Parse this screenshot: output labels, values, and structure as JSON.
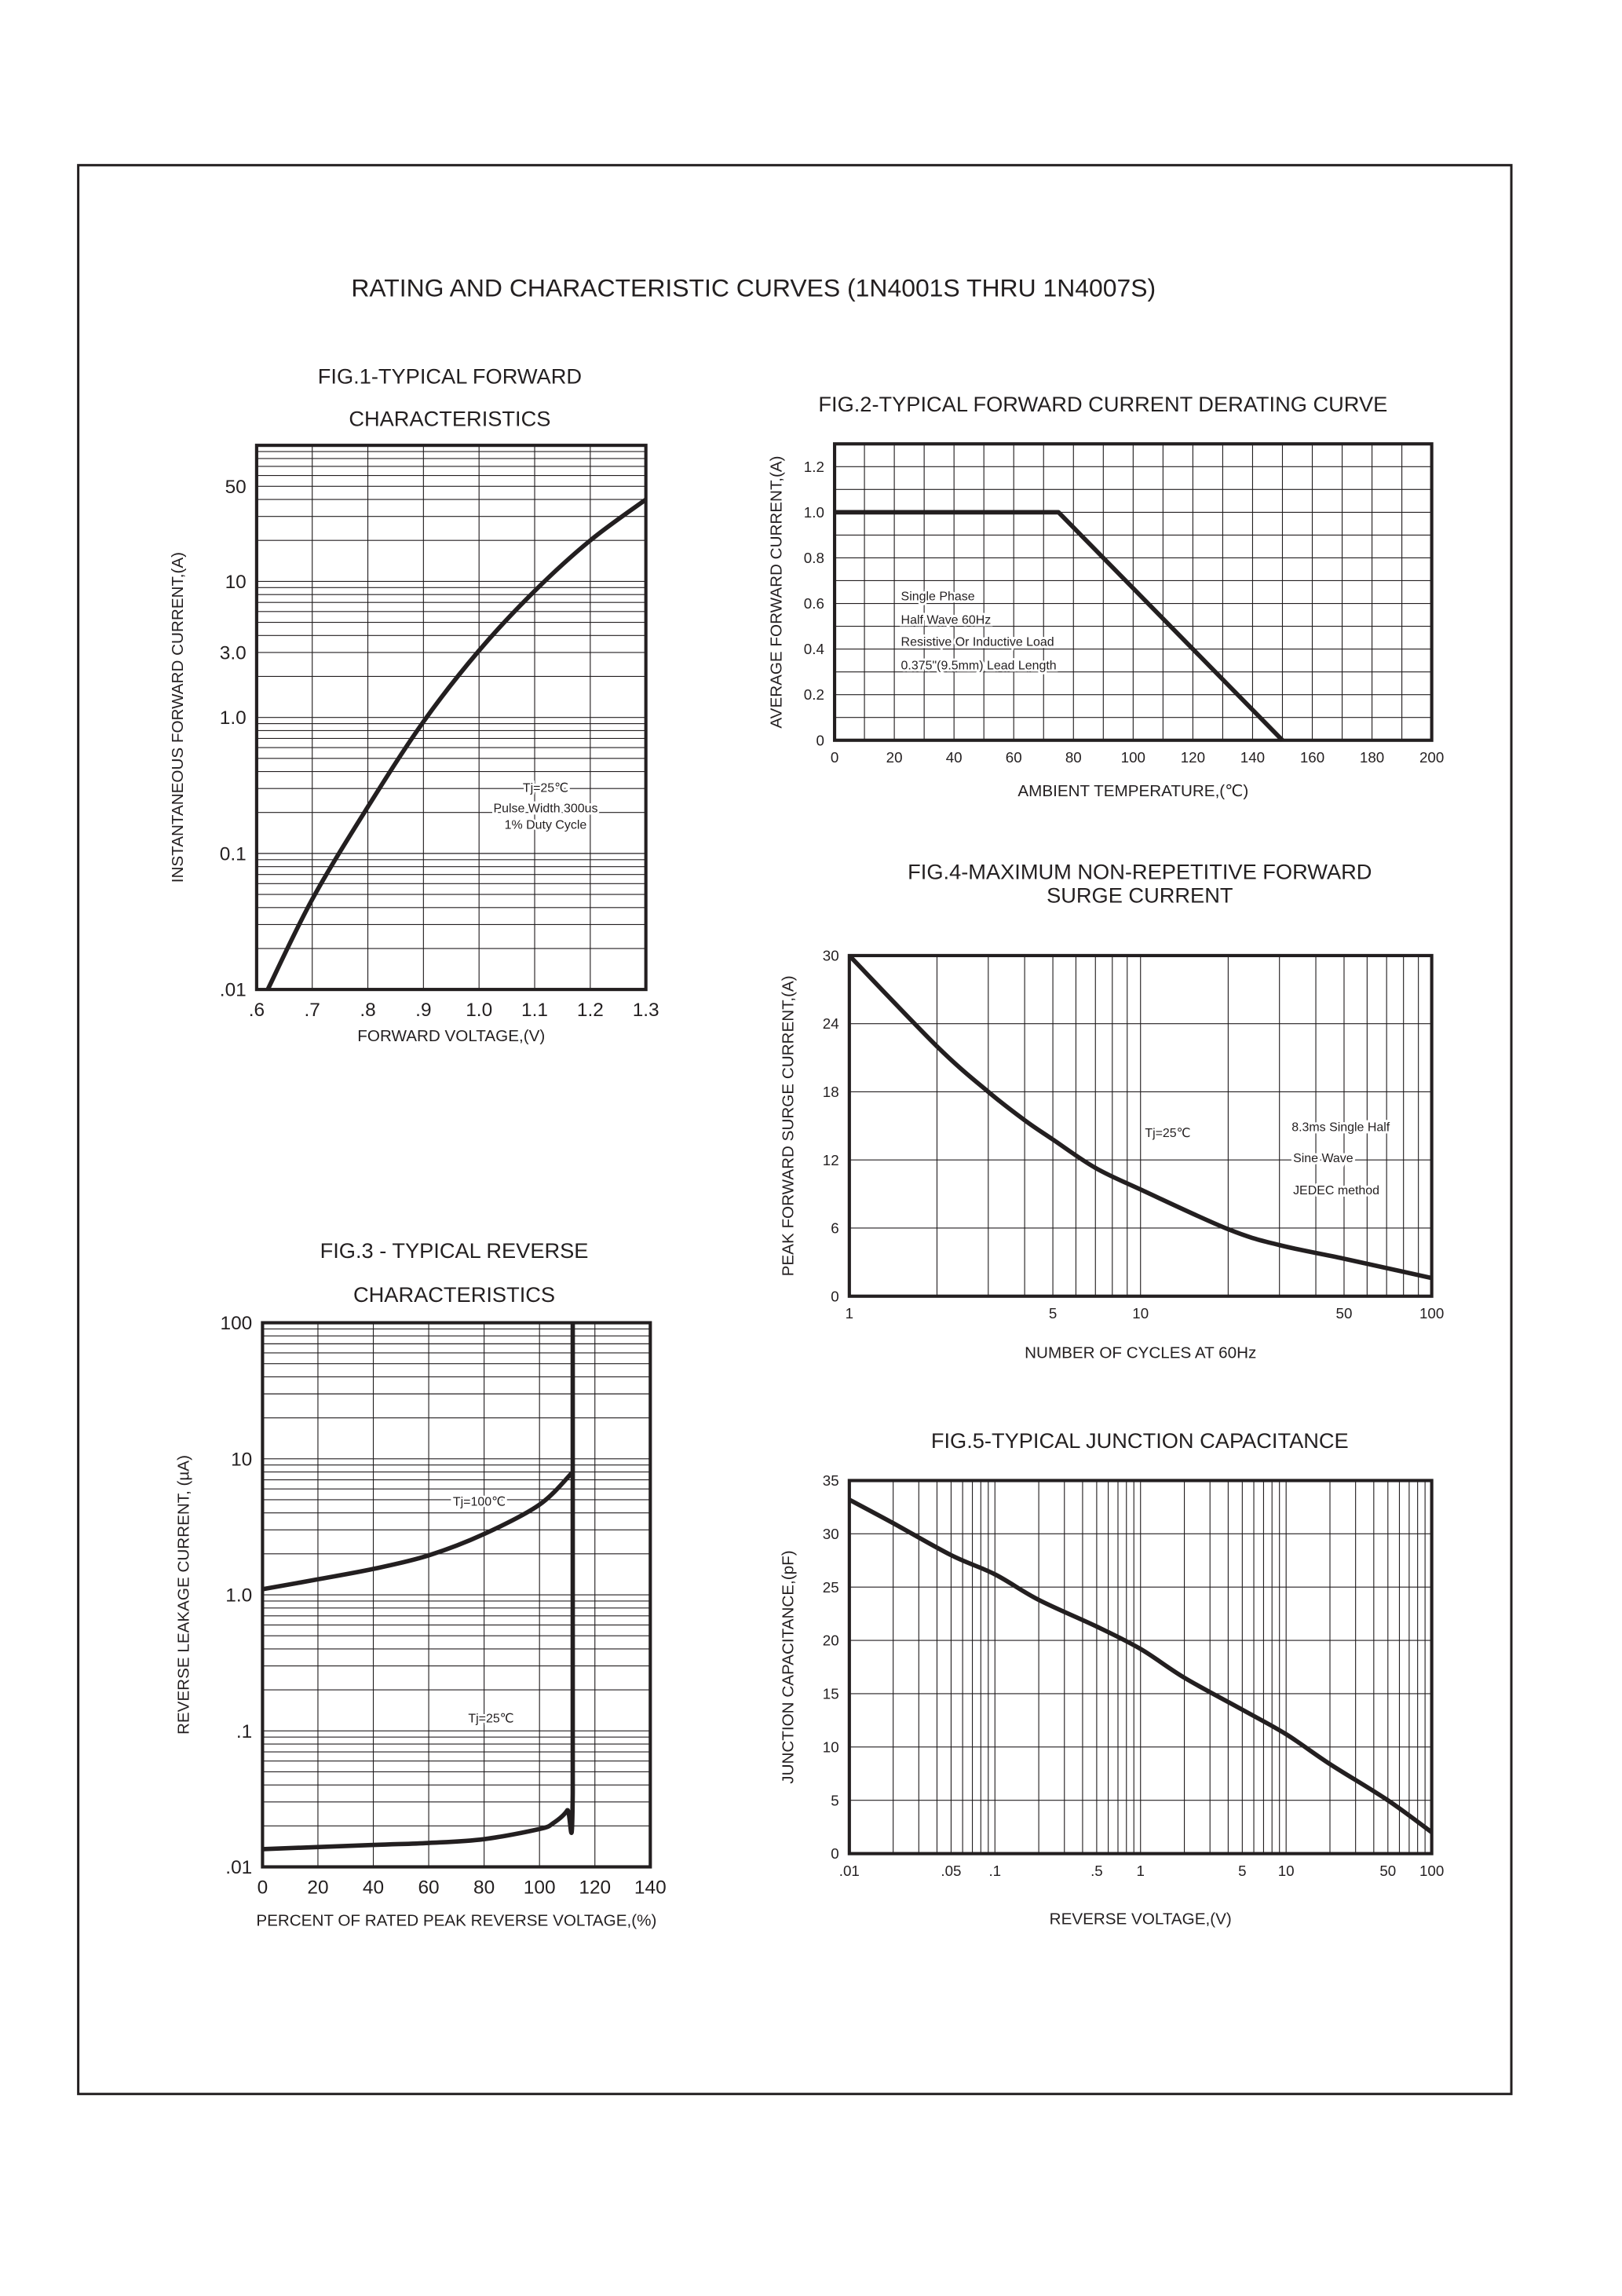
{
  "page_title": "RATING AND CHARACTERISTIC CURVES (1N4001S THRU 1N4007S)",
  "colors": {
    "ink": "#231f20",
    "grid": "#231f20",
    "background": "#ffffff"
  },
  "chart_data": [
    {
      "id": "fig1",
      "type": "line",
      "title": [
        "FIG.1-TYPICAL FORWARD",
        "CHARACTERISTICS"
      ],
      "xlabel": "FORWARD VOLTAGE,(V)",
      "ylabel": "INSTANTANEOUS FORWARD CURRENT,(A)",
      "xscale": "linear",
      "yscale": "log",
      "xlim": [
        0.6,
        1.3
      ],
      "ylim": [
        0.01,
        100
      ],
      "xticks": [
        0.6,
        0.7,
        0.8,
        0.9,
        1.0,
        1.1,
        1.2,
        1.3
      ],
      "xtick_labels": [
        ".6",
        ".7",
        ".8",
        ".9",
        "1.0",
        "1.1",
        "1.2",
        "1.3"
      ],
      "yticks": [
        0.01,
        0.1,
        1,
        3,
        10,
        50
      ],
      "ytick_labels": [
        ".01",
        "0.1",
        "1.0",
        "3.0",
        "10",
        "50"
      ],
      "grid": true,
      "annotations": [
        "Tj=25℃",
        "Pulse Width 300us",
        "1% Duty Cycle"
      ],
      "series": [
        {
          "x": [
            0.62,
            0.7,
            0.8,
            0.9,
            1.0,
            1.1,
            1.2,
            1.3
          ],
          "y": [
            0.01,
            0.046,
            0.22,
            0.93,
            3.1,
            8.5,
            20,
            40
          ]
        }
      ]
    },
    {
      "id": "fig2",
      "type": "line",
      "title": [
        "FIG.2-TYPICAL FORWARD CURRENT DERATING CURVE"
      ],
      "xlabel": "AMBIENT TEMPERATURE,(℃)",
      "ylabel": "AVERAGE FORWARD CURRENT,(A)",
      "xscale": "linear",
      "yscale": "linear",
      "xlim": [
        0,
        200
      ],
      "ylim": [
        0,
        1.3
      ],
      "xticks": [
        0,
        20,
        40,
        60,
        80,
        100,
        120,
        140,
        160,
        180,
        200
      ],
      "xtick_labels": [
        "0",
        "20",
        "40",
        "60",
        "80",
        "100",
        "120",
        "140",
        "160",
        "180",
        "200"
      ],
      "yticks": [
        0,
        0.2,
        0.4,
        0.6,
        0.8,
        1.0,
        1.2
      ],
      "ytick_labels": [
        "0",
        "0.2",
        "0.4",
        "0.6",
        "0.8",
        "1.0",
        "1.2"
      ],
      "grid": true,
      "annotations": [
        "Single Phase",
        "Half Wave 60Hz",
        "Resistive Or Inductive Load",
        "0.375\"(9.5mm) Lead Length"
      ],
      "series": [
        {
          "x": [
            0,
            75,
            150
          ],
          "y": [
            1.0,
            1.0,
            0
          ]
        }
      ]
    },
    {
      "id": "fig3",
      "type": "line",
      "title": [
        "FIG.3 - TYPICAL REVERSE",
        "CHARACTERISTICS"
      ],
      "xlabel": "PERCENT OF RATED PEAK REVERSE VOLTAGE,(%)",
      "ylabel": "REVERSE LEAKAGE CURRENT, (µA)",
      "xscale": "linear",
      "yscale": "log",
      "xlim": [
        0,
        140
      ],
      "ylim": [
        0.01,
        100
      ],
      "xticks": [
        0,
        20,
        40,
        60,
        80,
        100,
        120,
        140
      ],
      "xtick_labels": [
        "0",
        "20",
        "40",
        "60",
        "80",
        "100",
        "120",
        "140"
      ],
      "yticks": [
        0.01,
        0.1,
        1,
        10,
        100
      ],
      "ytick_labels": [
        ".01",
        ".1",
        "1.0",
        "10",
        "100"
      ],
      "grid": true,
      "annotations": [
        "Tj=100℃",
        "Tj=25℃"
      ],
      "series": [
        {
          "name": "Tj=100℃",
          "x": [
            0,
            20,
            40,
            60,
            80,
            100,
            112
          ],
          "y": [
            1.1,
            1.3,
            1.55,
            1.95,
            2.8,
            4.6,
            8
          ]
        },
        {
          "name": "Tj=25℃",
          "x": [
            0,
            40,
            60,
            80,
            100,
            105,
            110,
            112,
            112
          ],
          "y": [
            0.0135,
            0.0145,
            0.015,
            0.016,
            0.019,
            0.021,
            0.026,
            0.035,
            100
          ]
        }
      ]
    },
    {
      "id": "fig4",
      "type": "line",
      "title": [
        "FIG.4-MAXIMUM NON-REPETITIVE FORWARD",
        "SURGE CURRENT"
      ],
      "xlabel": "NUMBER OF CYCLES AT 60Hz",
      "ylabel": "PEAK FORWARD SURGE CURRENT,(A)",
      "xscale": "log",
      "yscale": "linear",
      "xlim": [
        1,
        100
      ],
      "ylim": [
        0,
        30
      ],
      "xticks": [
        1,
        5,
        10,
        50,
        100
      ],
      "xtick_labels": [
        "1",
        "5",
        "10",
        "50",
        "100"
      ],
      "yticks": [
        0,
        6,
        12,
        18,
        24,
        30
      ],
      "ytick_labels": [
        "0",
        "6",
        "12",
        "18",
        "24",
        "30"
      ],
      "grid": true,
      "annotations": [
        "Tj=25℃",
        "8.3ms Single Half",
        "Sine Wave",
        "JEDEC method"
      ],
      "series": [
        {
          "x": [
            1,
            2,
            3,
            4,
            5,
            7,
            10,
            20,
            30,
            50,
            100
          ],
          "y": [
            30,
            22,
            18,
            15.5,
            13.8,
            11.3,
            9.4,
            5.9,
            4.5,
            3.3,
            1.6
          ]
        }
      ]
    },
    {
      "id": "fig5",
      "type": "line",
      "title": [
        "FIG.5-TYPICAL JUNCTION CAPACITANCE"
      ],
      "xlabel": "REVERSE VOLTAGE,(V)",
      "ylabel": "JUNCTION CAPACITANCE,(pF)",
      "xscale": "log",
      "yscale": "linear",
      "xlim": [
        0.01,
        100
      ],
      "ylim": [
        0,
        35
      ],
      "xticks": [
        0.01,
        0.05,
        0.1,
        0.5,
        1,
        5,
        10,
        50,
        100
      ],
      "xtick_labels": [
        ".01",
        ".05",
        ".1",
        ".5",
        "1",
        "5",
        "10",
        "50",
        "100"
      ],
      "yticks": [
        0,
        5,
        10,
        15,
        20,
        25,
        30,
        35
      ],
      "ytick_labels": [
        "0",
        "5",
        "10",
        "15",
        "20",
        "25",
        "30",
        "35"
      ],
      "grid": true,
      "annotations": [],
      "series": [
        {
          "x": [
            0.01,
            0.02,
            0.05,
            0.1,
            0.2,
            0.5,
            1,
            2,
            5,
            10,
            20,
            50,
            100
          ],
          "y": [
            33.2,
            31,
            28,
            26.2,
            23.8,
            21.3,
            19.2,
            16.5,
            13.5,
            11.2,
            8.4,
            5,
            2
          ]
        }
      ]
    }
  ]
}
